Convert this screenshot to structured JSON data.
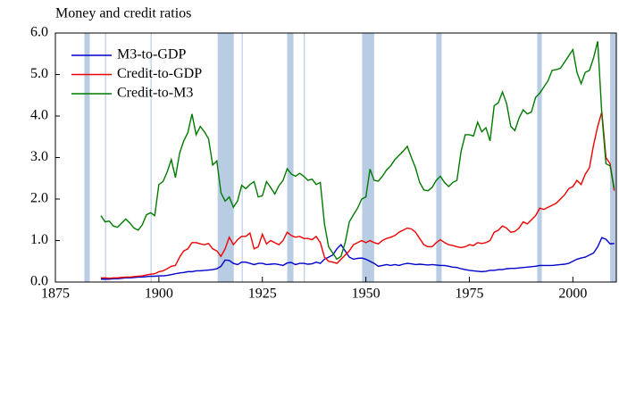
{
  "chart_data": {
    "type": "line",
    "title": "Money and credit ratios",
    "xlim": [
      1875,
      2010.5
    ],
    "xticks": [
      1875,
      1900,
      1925,
      1950,
      1975,
      2000
    ],
    "ylim": [
      0,
      6
    ],
    "yticks": [
      {
        "value": 0,
        "label": "0.0"
      },
      {
        "value": 1,
        "label": "1.0"
      },
      {
        "value": 2,
        "label": "2.0"
      },
      {
        "value": 3,
        "label": "3.0"
      },
      {
        "value": 4,
        "label": "4.0"
      },
      {
        "value": 5,
        "label": "5.0"
      },
      {
        "value": 6,
        "label": "6.0"
      }
    ],
    "shaded": [
      [
        1882,
        1883.3
      ],
      [
        1887,
        1887.25
      ],
      [
        1898,
        1898.25
      ],
      [
        1914.2,
        1918.1
      ],
      [
        1920,
        1920.25
      ],
      [
        1931,
        1932.5
      ],
      [
        1935,
        1935.25
      ],
      [
        1949.1,
        1952
      ],
      [
        1967,
        1968.3
      ],
      [
        1991.4,
        1992.5
      ],
      [
        2009,
        2010.5
      ]
    ],
    "shade_color": "#b8cce4",
    "x": [
      1886,
      1887,
      1888,
      1889,
      1890,
      1891,
      1892,
      1893,
      1894,
      1895,
      1896,
      1897,
      1898,
      1899,
      1900,
      1901,
      1902,
      1903,
      1904,
      1905,
      1906,
      1907,
      1908,
      1909,
      1910,
      1911,
      1912,
      1913,
      1914,
      1915,
      1916,
      1917,
      1918,
      1919,
      1920,
      1921,
      1922,
      1923,
      1924,
      1925,
      1926,
      1927,
      1928,
      1929,
      1930,
      1931,
      1932,
      1933,
      1934,
      1935,
      1936,
      1937,
      1938,
      1939,
      1940,
      1941,
      1942,
      1943,
      1944,
      1945,
      1946,
      1947,
      1948,
      1949,
      1950,
      1951,
      1952,
      1953,
      1954,
      1955,
      1956,
      1957,
      1958,
      1959,
      1960,
      1961,
      1962,
      1963,
      1964,
      1965,
      1966,
      1967,
      1968,
      1969,
      1970,
      1971,
      1972,
      1973,
      1974,
      1975,
      1976,
      1977,
      1978,
      1979,
      1980,
      1981,
      1982,
      1983,
      1984,
      1985,
      1986,
      1987,
      1988,
      1989,
      1990,
      1991,
      1992,
      1993,
      1994,
      1995,
      1996,
      1997,
      1998,
      1999,
      2000,
      2001,
      2002,
      2003,
      2004,
      2005,
      2006,
      2007,
      2008,
      2009,
      2010
    ],
    "series": [
      {
        "name": "M3-to-GDP",
        "color": "#0000cc",
        "values": [
          0.07,
          0.07,
          0.07,
          0.08,
          0.08,
          0.09,
          0.1,
          0.1,
          0.11,
          0.12,
          0.12,
          0.13,
          0.14,
          0.14,
          0.15,
          0.15,
          0.16,
          0.18,
          0.2,
          0.22,
          0.23,
          0.25,
          0.25,
          0.27,
          0.27,
          0.28,
          0.29,
          0.3,
          0.32,
          0.38,
          0.53,
          0.52,
          0.45,
          0.42,
          0.48,
          0.48,
          0.45,
          0.42,
          0.45,
          0.45,
          0.42,
          0.43,
          0.44,
          0.42,
          0.4,
          0.46,
          0.47,
          0.42,
          0.45,
          0.45,
          0.43,
          0.44,
          0.48,
          0.45,
          0.55,
          0.6,
          0.65,
          0.8,
          0.9,
          0.75,
          0.6,
          0.55,
          0.57,
          0.58,
          0.55,
          0.5,
          0.45,
          0.38,
          0.4,
          0.42,
          0.4,
          0.42,
          0.4,
          0.43,
          0.45,
          0.44,
          0.42,
          0.43,
          0.42,
          0.41,
          0.42,
          0.41,
          0.4,
          0.4,
          0.38,
          0.36,
          0.35,
          0.32,
          0.3,
          0.28,
          0.27,
          0.26,
          0.25,
          0.26,
          0.28,
          0.28,
          0.3,
          0.3,
          0.32,
          0.33,
          0.33,
          0.34,
          0.35,
          0.36,
          0.37,
          0.38,
          0.4,
          0.4,
          0.4,
          0.4,
          0.41,
          0.42,
          0.43,
          0.45,
          0.5,
          0.55,
          0.58,
          0.6,
          0.65,
          0.7,
          0.85,
          1.07,
          1.03,
          0.92,
          0.93
        ]
      },
      {
        "name": "Credit-to-GDP",
        "color": "#ee0000",
        "values": [
          0.1,
          0.1,
          0.09,
          0.1,
          0.1,
          0.11,
          0.12,
          0.12,
          0.13,
          0.14,
          0.15,
          0.17,
          0.19,
          0.2,
          0.25,
          0.27,
          0.32,
          0.38,
          0.4,
          0.6,
          0.75,
          0.8,
          0.95,
          0.95,
          0.92,
          0.9,
          0.93,
          0.8,
          0.75,
          0.62,
          0.8,
          1.08,
          0.9,
          1.02,
          1.1,
          1.1,
          1.18,
          0.8,
          0.85,
          1.15,
          0.92,
          1.0,
          0.95,
          0.9,
          1.0,
          1.2,
          1.12,
          1.08,
          1.1,
          1.05,
          1.05,
          1.02,
          1.1,
          0.95,
          0.6,
          0.5,
          0.48,
          0.45,
          0.55,
          0.65,
          0.75,
          0.9,
          0.95,
          1.0,
          0.95,
          1.0,
          0.95,
          0.92,
          1.0,
          1.05,
          1.08,
          1.12,
          1.2,
          1.25,
          1.3,
          1.28,
          1.2,
          1.05,
          0.9,
          0.85,
          0.85,
          0.95,
          1.02,
          0.95,
          0.9,
          0.88,
          0.85,
          0.83,
          0.85,
          0.9,
          0.88,
          0.95,
          0.93,
          0.95,
          1.0,
          1.2,
          1.25,
          1.35,
          1.3,
          1.2,
          1.22,
          1.3,
          1.45,
          1.4,
          1.5,
          1.6,
          1.78,
          1.75,
          1.8,
          1.85,
          1.9,
          2.0,
          2.1,
          2.25,
          2.3,
          2.45,
          2.35,
          2.6,
          2.75,
          3.3,
          3.75,
          4.1,
          3.0,
          2.85,
          2.2
        ]
      },
      {
        "name": "Credit-to-M3",
        "color": "#007a00",
        "values": [
          1.6,
          1.45,
          1.47,
          1.35,
          1.32,
          1.42,
          1.52,
          1.42,
          1.3,
          1.25,
          1.38,
          1.62,
          1.67,
          1.6,
          2.35,
          2.42,
          2.65,
          2.95,
          2.52,
          3.1,
          3.4,
          3.6,
          4.05,
          3.55,
          3.75,
          3.62,
          3.45,
          2.82,
          2.92,
          2.15,
          1.95,
          2.05,
          1.8,
          1.95,
          2.33,
          2.25,
          2.35,
          2.42,
          2.05,
          2.08,
          2.42,
          2.28,
          2.12,
          2.32,
          2.45,
          2.73,
          2.6,
          2.55,
          2.62,
          2.55,
          2.45,
          2.48,
          2.35,
          2.4,
          1.4,
          0.85,
          0.7,
          0.55,
          0.62,
          0.95,
          1.45,
          1.62,
          1.78,
          2.0,
          2.05,
          2.72,
          2.45,
          2.43,
          2.55,
          2.7,
          2.8,
          2.95,
          3.05,
          3.15,
          3.27,
          3.0,
          2.75,
          2.4,
          2.22,
          2.2,
          2.28,
          2.45,
          2.55,
          2.4,
          2.3,
          2.4,
          2.45,
          3.15,
          3.55,
          3.55,
          3.52,
          3.85,
          3.62,
          3.72,
          3.4,
          4.25,
          4.32,
          4.58,
          4.3,
          3.75,
          3.65,
          3.95,
          4.15,
          4.05,
          4.1,
          4.45,
          4.55,
          4.7,
          4.85,
          5.1,
          5.12,
          5.15,
          5.3,
          5.45,
          5.6,
          5.05,
          4.78,
          5.05,
          5.1,
          5.4,
          5.8,
          4.05,
          2.85,
          2.8,
          2.25
        ]
      }
    ]
  }
}
